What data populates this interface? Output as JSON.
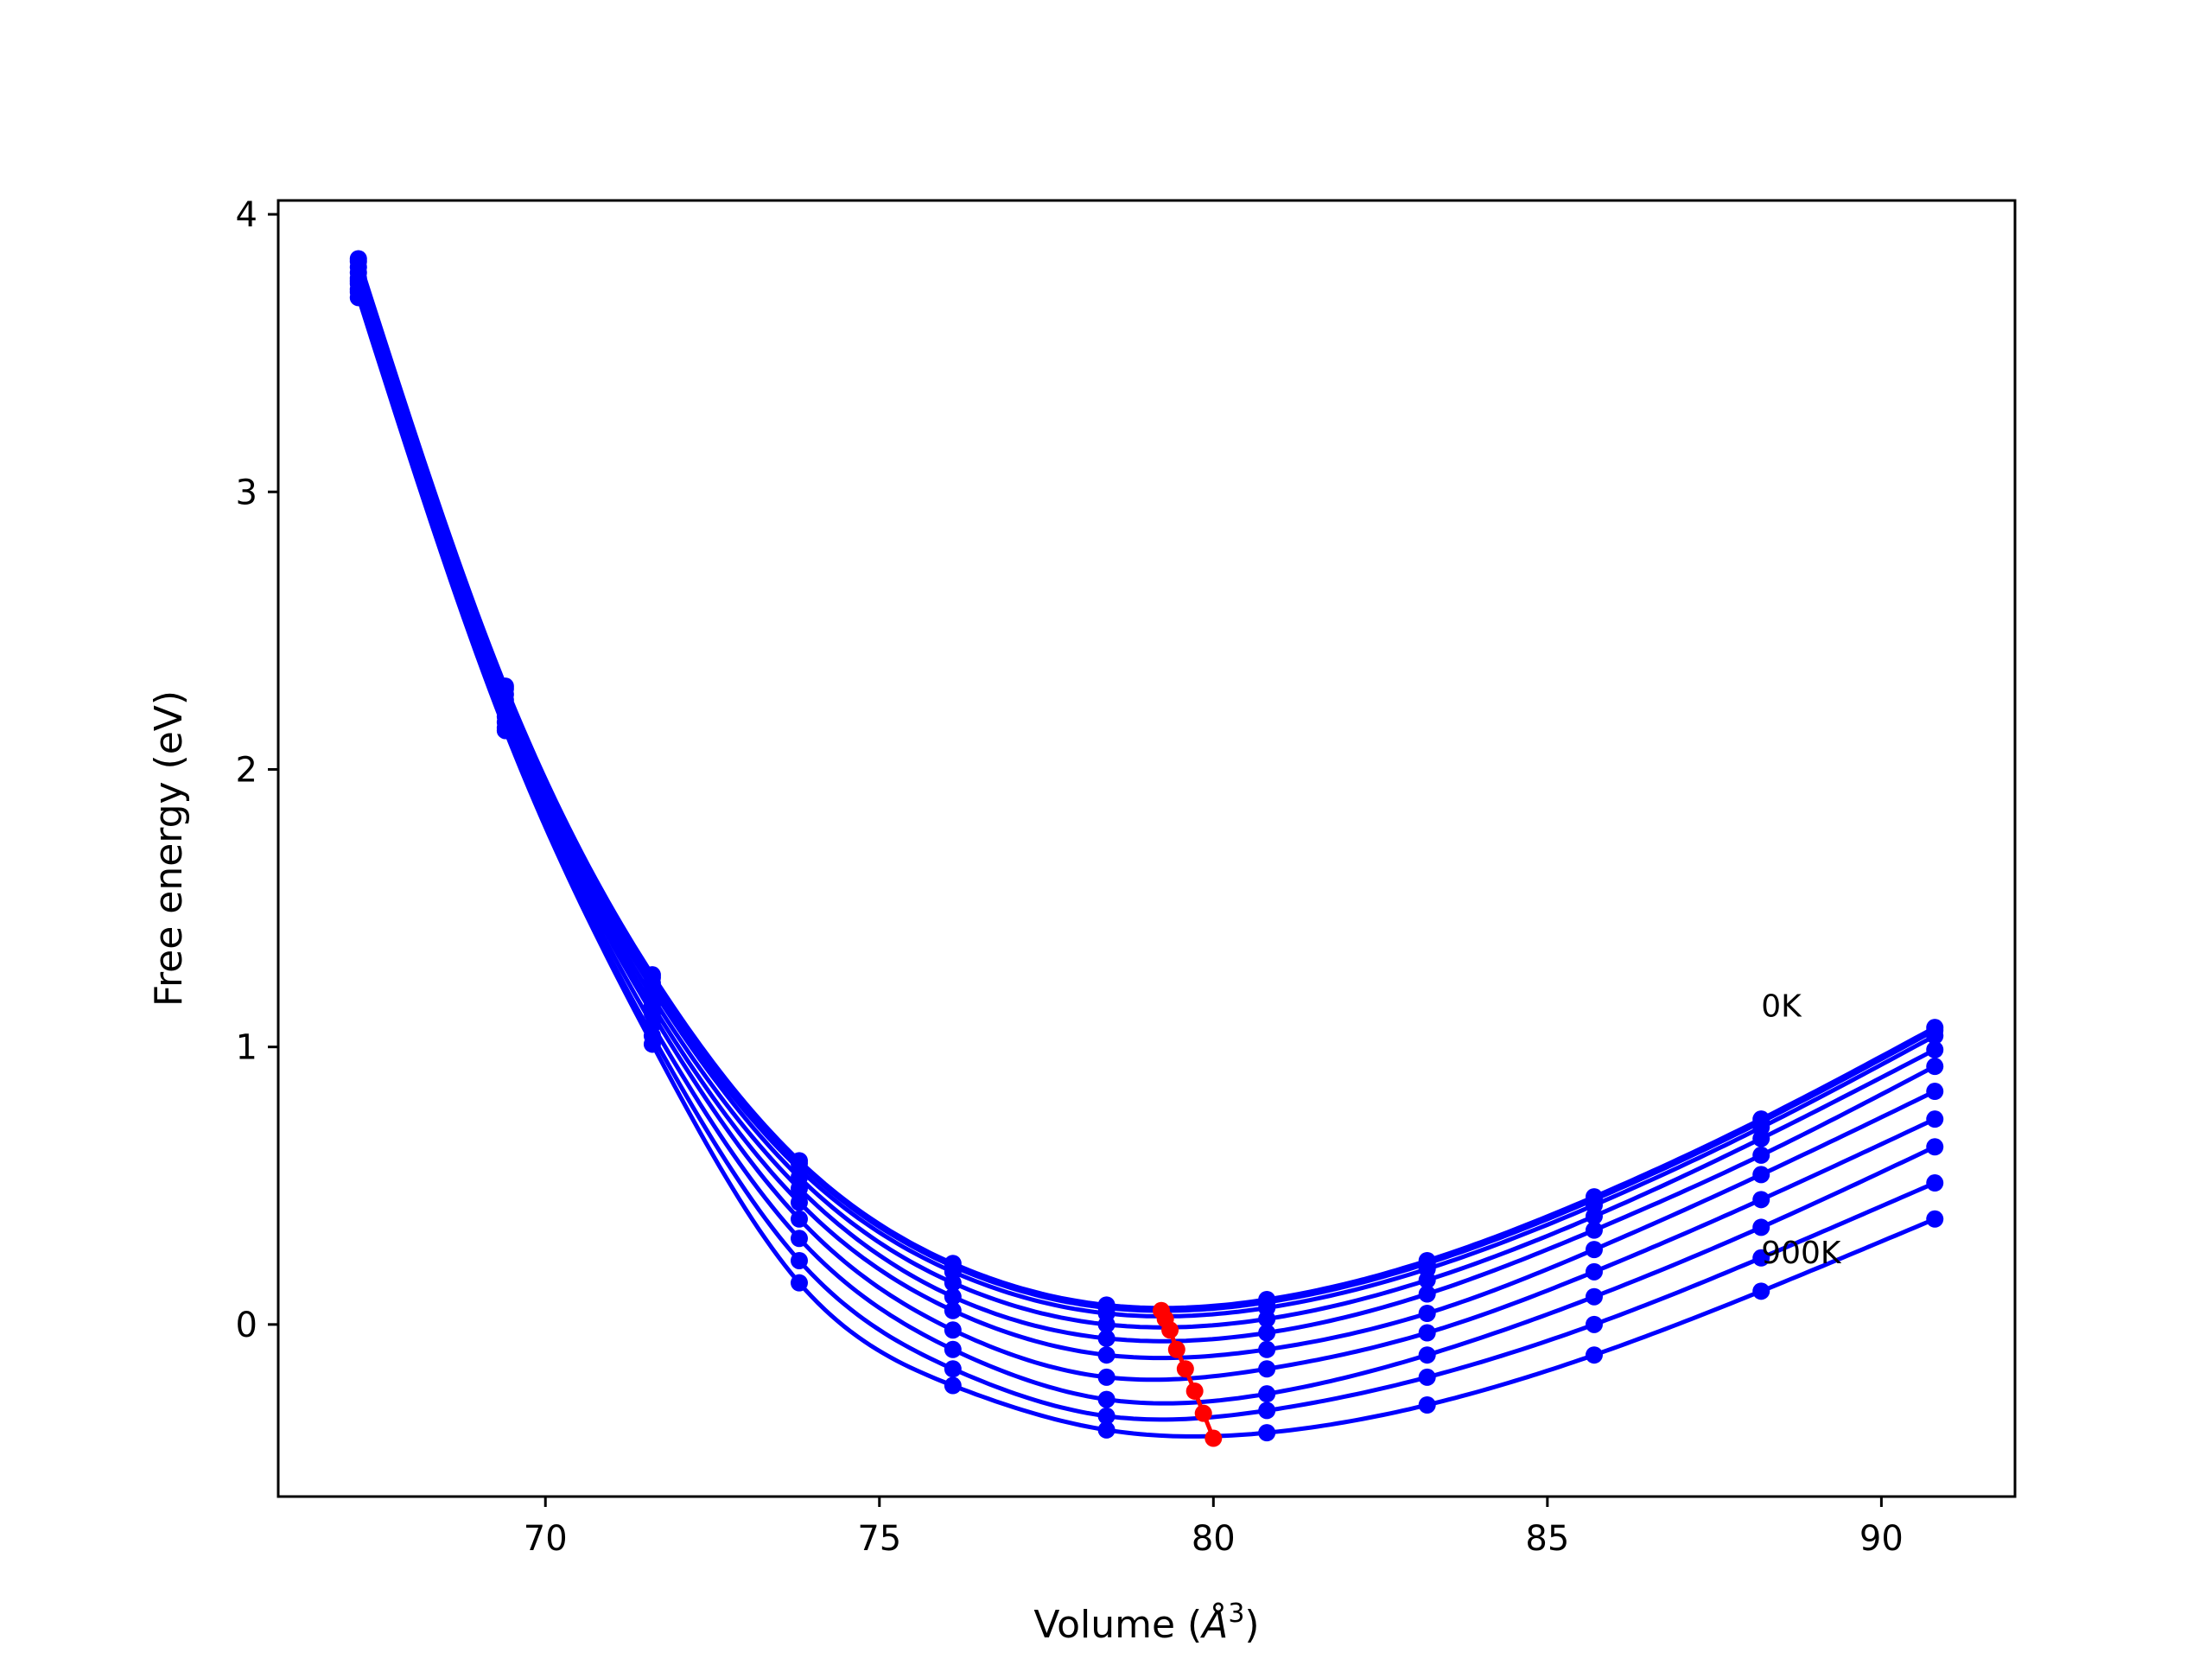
{
  "chart_data": {
    "type": "line",
    "title": "",
    "xlabel": "Volume (",
    "xlabel_unit": "Å",
    "xlabel_exp": "3",
    "xlabel_close": ")",
    "ylabel": "Free energy (eV)",
    "xlim": [
      66,
      92
    ],
    "ylim": [
      -0.62,
      4.05
    ],
    "xticks": [
      70,
      75,
      80,
      85,
      90
    ],
    "yticks": [
      0,
      1,
      2,
      3,
      4
    ],
    "grid": false,
    "legend": "none",
    "colors": {
      "curves": "#0000ff",
      "minima": "#ff0000",
      "frame": "#000000"
    },
    "volumes": [
      67.2,
      69.4,
      71.6,
      73.8,
      76.1,
      78.4,
      80.8,
      83.2,
      85.7,
      88.2,
      90.8
    ],
    "series": [
      {
        "values": [
          3.84,
          2.3,
          1.26,
          0.59,
          0.22,
          0.07,
          0.09,
          0.23,
          0.46,
          0.74,
          1.07
        ]
      },
      {
        "values": [
          3.83,
          2.29,
          1.25,
          0.58,
          0.21,
          0.06,
          0.08,
          0.22,
          0.45,
          0.73,
          1.06
        ]
      },
      {
        "values": [
          3.81,
          2.27,
          1.23,
          0.56,
          0.19,
          0.04,
          0.06,
          0.2,
          0.43,
          0.71,
          1.04
        ]
      },
      {
        "values": [
          3.79,
          2.25,
          1.21,
          0.53,
          0.15,
          0.0,
          0.02,
          0.16,
          0.39,
          0.67,
          0.99
        ]
      },
      {
        "values": [
          3.77,
          2.23,
          1.18,
          0.49,
          0.1,
          -0.05,
          -0.03,
          0.11,
          0.34,
          0.61,
          0.93
        ]
      },
      {
        "values": [
          3.76,
          2.21,
          1.15,
          0.44,
          0.05,
          -0.11,
          -0.09,
          0.04,
          0.27,
          0.54,
          0.84
        ]
      },
      {
        "values": [
          3.75,
          2.19,
          1.12,
          0.38,
          -0.02,
          -0.19,
          -0.16,
          -0.03,
          0.19,
          0.45,
          0.74
        ]
      },
      {
        "values": [
          3.73,
          2.17,
          1.08,
          0.31,
          -0.09,
          -0.27,
          -0.25,
          -0.11,
          0.1,
          0.35,
          0.64
        ]
      },
      {
        "values": [
          3.72,
          2.15,
          1.04,
          0.23,
          -0.16,
          -0.33,
          -0.31,
          -0.19,
          0.0,
          0.24,
          0.51
        ]
      },
      {
        "values": [
          3.7,
          2.14,
          1.01,
          0.15,
          -0.22,
          -0.38,
          -0.39,
          -0.29,
          -0.11,
          0.12,
          0.38
        ]
      }
    ],
    "minima": {
      "x": [
        79.22,
        79.28,
        79.35,
        79.45,
        79.58,
        79.72,
        79.85,
        80.0
      ],
      "y": [
        0.05,
        0.02,
        -0.02,
        -0.09,
        -0.16,
        -0.24,
        -0.32,
        -0.41
      ]
    },
    "annotations": [
      {
        "text": "0K",
        "x": 88.2,
        "y": 1.11
      },
      {
        "text": "900K",
        "x": 88.2,
        "y": 0.22
      }
    ]
  }
}
